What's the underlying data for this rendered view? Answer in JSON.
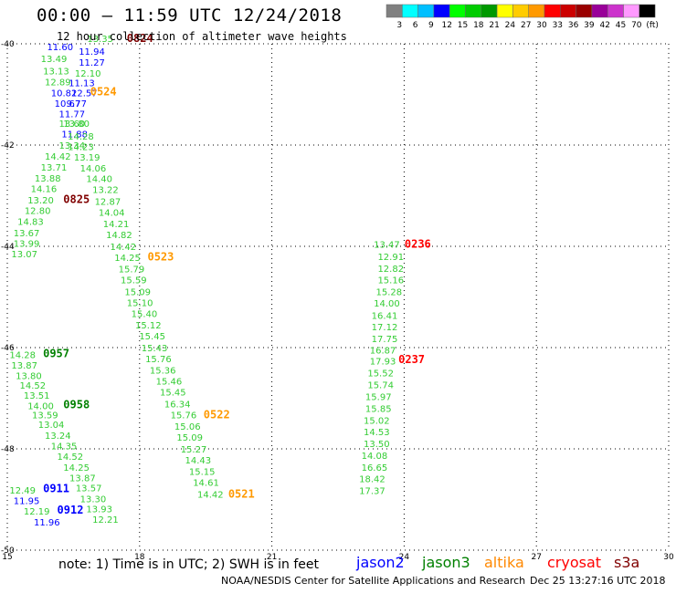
{
  "header": {
    "title": "00:00 – 11:59 UTC 12/24/2018",
    "subtitle": "12 hour collection of altimeter wave heights"
  },
  "colorbar": {
    "colors": [
      "#808080",
      "#00ffff",
      "#00bfff",
      "#0000ff",
      "#00ff00",
      "#00cc00",
      "#009900",
      "#ffff00",
      "#ffcc00",
      "#ff9900",
      "#ff0000",
      "#cc0000",
      "#990000",
      "#990099",
      "#cc33cc",
      "#ff99ff",
      "#000000"
    ],
    "labels": [
      "3",
      "6",
      "9",
      "12",
      "15",
      "18",
      "21",
      "24",
      "27",
      "30",
      "33",
      "36",
      "39",
      "42",
      "45",
      "70",
      "(ft)"
    ]
  },
  "chart_data": {
    "type": "scatter",
    "xlim": [
      15,
      30
    ],
    "ylim": [
      -50,
      -40
    ],
    "xticks": [
      15,
      18,
      21,
      24,
      27,
      30
    ],
    "yticks": [
      -40,
      -42,
      -44,
      -46,
      -48,
      -50
    ],
    "grid": true,
    "series": [
      {
        "name": "jason2",
        "color": "#0000ff"
      },
      {
        "name": "jason3",
        "color": "#008000"
      },
      {
        "name": "altika",
        "color": "#ff8800"
      },
      {
        "name": "cryosat",
        "color": "#ff0000"
      },
      {
        "name": "s3a",
        "color": "#800000"
      }
    ],
    "labels": [
      {
        "x": 16.81,
        "y": -39.96,
        "t": "13.35",
        "c": "#33cc33",
        "s": 10
      },
      {
        "x": 17.71,
        "y": -39.96,
        "t": "0824",
        "c": "#800000",
        "s": 12
      },
      {
        "x": 15.9,
        "y": -40.13,
        "t": "11.60",
        "c": "#0000ff",
        "s": 10
      },
      {
        "x": 16.62,
        "y": -40.22,
        "t": "11.94",
        "c": "#0000ff",
        "s": 10
      },
      {
        "x": 15.76,
        "y": -40.36,
        "t": "13.49",
        "c": "#33cc33",
        "s": 10
      },
      {
        "x": 16.62,
        "y": -40.43,
        "t": "11.27",
        "c": "#0000ff",
        "s": 10
      },
      {
        "x": 15.81,
        "y": -40.6,
        "t": "13.13",
        "c": "#33cc33",
        "s": 10
      },
      {
        "x": 16.53,
        "y": -40.65,
        "t": "12.10",
        "c": "#33cc33",
        "s": 10
      },
      {
        "x": 15.85,
        "y": -40.82,
        "t": "12.89",
        "c": "#33cc33",
        "s": 10
      },
      {
        "x": 16.39,
        "y": -40.84,
        "t": "11.13",
        "c": "#0000ff",
        "s": 10
      },
      {
        "x": 15.99,
        "y": -41.04,
        "t": "10.82",
        "c": "#0000ff",
        "s": 10
      },
      {
        "x": 16.45,
        "y": -41.04,
        "t": "12.57",
        "c": "#0000ff",
        "s": 10
      },
      {
        "x": 16.88,
        "y": -41.02,
        "t": "0524",
        "c": "#ff9900",
        "s": 12
      },
      {
        "x": 16.07,
        "y": -41.24,
        "t": "10.67",
        "c": "#0000ff",
        "s": 10
      },
      {
        "x": 16.34,
        "y": -41.24,
        "t": "9.77",
        "c": "#0000ff",
        "s": 10
      },
      {
        "x": 16.17,
        "y": -41.45,
        "t": "11.77",
        "c": "#0000ff",
        "s": 10
      },
      {
        "x": 16.17,
        "y": -41.64,
        "t": "13.60",
        "c": "#33cc33",
        "s": 10
      },
      {
        "x": 16.27,
        "y": -41.64,
        "t": "13.80",
        "c": "#33cc33",
        "s": 10
      },
      {
        "x": 16.23,
        "y": -41.85,
        "t": "11.88",
        "c": "#0000ff",
        "s": 10
      },
      {
        "x": 16.37,
        "y": -41.89,
        "t": "14.28",
        "c": "#33cc33",
        "s": 10
      },
      {
        "x": 16.17,
        "y": -42.07,
        "t": "13.34",
        "c": "#33cc33",
        "s": 10
      },
      {
        "x": 16.37,
        "y": -42.1,
        "t": "14.23",
        "c": "#33cc33",
        "s": 10
      },
      {
        "x": 15.85,
        "y": -42.29,
        "t": "14.42",
        "c": "#33cc33",
        "s": 10
      },
      {
        "x": 16.51,
        "y": -42.31,
        "t": "13.19",
        "c": "#33cc33",
        "s": 10
      },
      {
        "x": 15.76,
        "y": -42.5,
        "t": "13.71",
        "c": "#33cc33",
        "s": 10
      },
      {
        "x": 16.65,
        "y": -42.52,
        "t": "14.06",
        "c": "#33cc33",
        "s": 10
      },
      {
        "x": 15.62,
        "y": -42.72,
        "t": "13.88",
        "c": "#33cc33",
        "s": 10
      },
      {
        "x": 16.79,
        "y": -42.73,
        "t": "14.40",
        "c": "#33cc33",
        "s": 10
      },
      {
        "x": 15.53,
        "y": -42.93,
        "t": "14.16",
        "c": "#33cc33",
        "s": 10
      },
      {
        "x": 16.93,
        "y": -42.95,
        "t": "13.22",
        "c": "#33cc33",
        "s": 10
      },
      {
        "x": 15.46,
        "y": -43.15,
        "t": "13.20",
        "c": "#33cc33",
        "s": 10
      },
      {
        "x": 16.27,
        "y": -43.14,
        "t": "0825",
        "c": "#800000",
        "s": 12
      },
      {
        "x": 16.98,
        "y": -43.18,
        "t": "12.87",
        "c": "#33cc33",
        "s": 10
      },
      {
        "x": 15.39,
        "y": -43.36,
        "t": "12.80",
        "c": "#33cc33",
        "s": 10
      },
      {
        "x": 17.07,
        "y": -43.4,
        "t": "14.04",
        "c": "#33cc33",
        "s": 10
      },
      {
        "x": 15.23,
        "y": -43.58,
        "t": "14.83",
        "c": "#33cc33",
        "s": 10
      },
      {
        "x": 17.17,
        "y": -43.62,
        "t": "14.21",
        "c": "#33cc33",
        "s": 10
      },
      {
        "x": 15.14,
        "y": -43.8,
        "t": "13.67",
        "c": "#33cc33",
        "s": 10
      },
      {
        "x": 17.24,
        "y": -43.84,
        "t": "14.82",
        "c": "#33cc33",
        "s": 10
      },
      {
        "x": 15.14,
        "y": -44.01,
        "t": "13.99",
        "c": "#33cc33",
        "s": 10
      },
      {
        "x": 17.33,
        "y": -44.07,
        "t": "14.42",
        "c": "#33cc33",
        "s": 10
      },
      {
        "x": 15.09,
        "y": -44.22,
        "t": "13.07",
        "c": "#33cc33",
        "s": 10
      },
      {
        "x": 17.43,
        "y": -44.29,
        "t": "14.25",
        "c": "#33cc33",
        "s": 10
      },
      {
        "x": 18.18,
        "y": -44.28,
        "t": "0523",
        "c": "#ff9900",
        "s": 12
      },
      {
        "x": 17.52,
        "y": -44.51,
        "t": "15.79",
        "c": "#33cc33",
        "s": 10
      },
      {
        "x": 17.57,
        "y": -44.73,
        "t": "15.59",
        "c": "#33cc33",
        "s": 10
      },
      {
        "x": 17.66,
        "y": -44.96,
        "t": "15.09",
        "c": "#33cc33",
        "s": 10
      },
      {
        "x": 17.71,
        "y": -45.18,
        "t": "15.10",
        "c": "#33cc33",
        "s": 10
      },
      {
        "x": 17.81,
        "y": -45.4,
        "t": "15.40",
        "c": "#33cc33",
        "s": 10
      },
      {
        "x": 17.9,
        "y": -45.62,
        "t": "15.12",
        "c": "#33cc33",
        "s": 10
      },
      {
        "x": 17.99,
        "y": -45.84,
        "t": "15.45",
        "c": "#33cc33",
        "s": 10
      },
      {
        "x": 18.04,
        "y": -46.07,
        "t": "15.43",
        "c": "#33cc33",
        "s": 10
      },
      {
        "x": 18.13,
        "y": -46.29,
        "t": "15.76",
        "c": "#33cc33",
        "s": 10
      },
      {
        "x": 18.23,
        "y": -46.51,
        "t": "15.36",
        "c": "#33cc33",
        "s": 10
      },
      {
        "x": 18.37,
        "y": -46.73,
        "t": "15.46",
        "c": "#33cc33",
        "s": 10
      },
      {
        "x": 18.46,
        "y": -46.95,
        "t": "15.45",
        "c": "#33cc33",
        "s": 10
      },
      {
        "x": 18.56,
        "y": -47.18,
        "t": "16.34",
        "c": "#33cc33",
        "s": 10
      },
      {
        "x": 18.7,
        "y": -47.4,
        "t": "15.76",
        "c": "#33cc33",
        "s": 10
      },
      {
        "x": 19.45,
        "y": -47.4,
        "t": "0522",
        "c": "#ff9900",
        "s": 12
      },
      {
        "x": 18.79,
        "y": -47.62,
        "t": "15.06",
        "c": "#33cc33",
        "s": 10
      },
      {
        "x": 18.84,
        "y": -47.84,
        "t": "15.09",
        "c": "#33cc33",
        "s": 10
      },
      {
        "x": 18.93,
        "y": -48.07,
        "t": "15.27",
        "c": "#33cc33",
        "s": 10
      },
      {
        "x": 19.03,
        "y": -48.29,
        "t": "14.43",
        "c": "#33cc33",
        "s": 10
      },
      {
        "x": 19.12,
        "y": -48.51,
        "t": "15.15",
        "c": "#33cc33",
        "s": 10
      },
      {
        "x": 19.21,
        "y": -48.73,
        "t": "14.61",
        "c": "#33cc33",
        "s": 10
      },
      {
        "x": 19.31,
        "y": -48.96,
        "t": "14.42",
        "c": "#33cc33",
        "s": 10
      },
      {
        "x": 20.01,
        "y": -48.96,
        "t": "0521",
        "c": "#ff9900",
        "s": 12
      },
      {
        "x": 15.05,
        "y": -46.21,
        "t": "14.28",
        "c": "#33cc33",
        "s": 10
      },
      {
        "x": 15.81,
        "y": -46.19,
        "t": "0957",
        "c": "#008000",
        "s": 12
      },
      {
        "x": 15.09,
        "y": -46.41,
        "t": "13.87",
        "c": "#33cc33",
        "s": 10
      },
      {
        "x": 15.19,
        "y": -46.62,
        "t": "13.80",
        "c": "#33cc33",
        "s": 10
      },
      {
        "x": 15.28,
        "y": -46.81,
        "t": "14.52",
        "c": "#33cc33",
        "s": 10
      },
      {
        "x": 15.37,
        "y": -47.01,
        "t": "13.51",
        "c": "#33cc33",
        "s": 10
      },
      {
        "x": 15.46,
        "y": -47.22,
        "t": "14.00",
        "c": "#33cc33",
        "s": 10
      },
      {
        "x": 16.27,
        "y": -47.2,
        "t": "0958",
        "c": "#008000",
        "s": 12
      },
      {
        "x": 15.56,
        "y": -47.4,
        "t": "13.59",
        "c": "#33cc33",
        "s": 10
      },
      {
        "x": 15.7,
        "y": -47.59,
        "t": "13.04",
        "c": "#33cc33",
        "s": 10
      },
      {
        "x": 15.85,
        "y": -47.8,
        "t": "13.24",
        "c": "#33cc33",
        "s": 10
      },
      {
        "x": 15.99,
        "y": -48.01,
        "t": "14.35",
        "c": "#33cc33",
        "s": 10
      },
      {
        "x": 16.13,
        "y": -48.22,
        "t": "14.52",
        "c": "#33cc33",
        "s": 10
      },
      {
        "x": 16.27,
        "y": -48.43,
        "t": "14.25",
        "c": "#33cc33",
        "s": 10
      },
      {
        "x": 16.41,
        "y": -48.64,
        "t": "13.87",
        "c": "#33cc33",
        "s": 10
      },
      {
        "x": 16.55,
        "y": -48.84,
        "t": "13.57",
        "c": "#33cc33",
        "s": 10
      },
      {
        "x": 16.65,
        "y": -49.05,
        "t": "13.30",
        "c": "#33cc33",
        "s": 10
      },
      {
        "x": 16.79,
        "y": -49.25,
        "t": "13.93",
        "c": "#33cc33",
        "s": 10
      },
      {
        "x": 16.93,
        "y": -49.46,
        "t": "12.21",
        "c": "#33cc33",
        "s": 10
      },
      {
        "x": 15.05,
        "y": -48.88,
        "t": "12.49",
        "c": "#33cc33",
        "s": 10
      },
      {
        "x": 15.81,
        "y": -48.86,
        "t": "0911",
        "c": "#0000ff",
        "s": 12
      },
      {
        "x": 15.14,
        "y": -49.09,
        "t": "11.95",
        "c": "#0000ff",
        "s": 10
      },
      {
        "x": 15.37,
        "y": -49.3,
        "t": "12.19",
        "c": "#33cc33",
        "s": 10
      },
      {
        "x": 16.13,
        "y": -49.28,
        "t": "0912",
        "c": "#0000ff",
        "s": 12
      },
      {
        "x": 15.6,
        "y": -49.51,
        "t": "11.96",
        "c": "#0000ff",
        "s": 10
      },
      {
        "x": 23.31,
        "y": -44.03,
        "t": "13.47",
        "c": "#33cc33",
        "s": 10
      },
      {
        "x": 24.01,
        "y": -44.03,
        "t": "0236",
        "c": "#ff0000",
        "s": 12
      },
      {
        "x": 23.4,
        "y": -44.27,
        "t": "12.91",
        "c": "#33cc33",
        "s": 10
      },
      {
        "x": 23.4,
        "y": -44.5,
        "t": "12.82",
        "c": "#33cc33",
        "s": 10
      },
      {
        "x": 23.4,
        "y": -44.73,
        "t": "15.16",
        "c": "#33cc33",
        "s": 10
      },
      {
        "x": 23.36,
        "y": -44.96,
        "t": "15.28",
        "c": "#33cc33",
        "s": 10
      },
      {
        "x": 23.31,
        "y": -45.19,
        "t": "14.00",
        "c": "#33cc33",
        "s": 10
      },
      {
        "x": 23.26,
        "y": -45.43,
        "t": "16.41",
        "c": "#33cc33",
        "s": 10
      },
      {
        "x": 23.26,
        "y": -45.66,
        "t": "17.12",
        "c": "#33cc33",
        "s": 10
      },
      {
        "x": 23.26,
        "y": -45.89,
        "t": "17.75",
        "c": "#33cc33",
        "s": 10
      },
      {
        "x": 23.22,
        "y": -46.12,
        "t": "16.87",
        "c": "#33cc33",
        "s": 10
      },
      {
        "x": 23.22,
        "y": -46.33,
        "t": "17.93",
        "c": "#33cc33",
        "s": 10
      },
      {
        "x": 23.87,
        "y": -46.31,
        "t": "0237",
        "c": "#ff0000",
        "s": 12
      },
      {
        "x": 23.17,
        "y": -46.57,
        "t": "15.52",
        "c": "#33cc33",
        "s": 10
      },
      {
        "x": 23.17,
        "y": -46.8,
        "t": "15.74",
        "c": "#33cc33",
        "s": 10
      },
      {
        "x": 23.12,
        "y": -47.04,
        "t": "15.97",
        "c": "#33cc33",
        "s": 10
      },
      {
        "x": 23.12,
        "y": -47.27,
        "t": "15.85",
        "c": "#33cc33",
        "s": 10
      },
      {
        "x": 23.08,
        "y": -47.5,
        "t": "15.02",
        "c": "#33cc33",
        "s": 10
      },
      {
        "x": 23.08,
        "y": -47.73,
        "t": "14.53",
        "c": "#33cc33",
        "s": 10
      },
      {
        "x": 23.08,
        "y": -47.96,
        "t": "13.50",
        "c": "#33cc33",
        "s": 10
      },
      {
        "x": 23.03,
        "y": -48.2,
        "t": "14.08",
        "c": "#33cc33",
        "s": 10
      },
      {
        "x": 23.03,
        "y": -48.43,
        "t": "16.65",
        "c": "#33cc33",
        "s": 10
      },
      {
        "x": 22.98,
        "y": -48.66,
        "t": "18.42",
        "c": "#33cc33",
        "s": 10
      },
      {
        "x": 22.98,
        "y": -48.89,
        "t": "17.37",
        "c": "#33cc33",
        "s": 10
      }
    ]
  },
  "footer": {
    "note": "note: 1) Time is in UTC; 2) SWH is in feet",
    "credit": "NOAA/NESDIS Center for Satellite Applications and Research",
    "timestamp": "Dec 25 13:27:16 UTC 2018"
  }
}
